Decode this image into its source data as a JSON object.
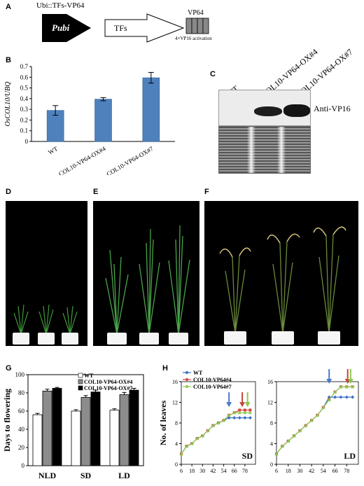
{
  "panels": {
    "A": {
      "letter": "A",
      "construct_title": "Ubi::TFs-VP64",
      "promoter": "Pubi",
      "tf": "TFs",
      "vp64": "VP64",
      "activation": "4×VP16 activation"
    },
    "B": {
      "letter": "B",
      "chart_data": {
        "type": "bar",
        "categories": [
          "WT",
          "COL10-VP64-OX#4",
          "COL10-VP64-OX#7"
        ],
        "values": [
          0.29,
          0.395,
          0.595
        ],
        "errors": [
          0.045,
          0.015,
          0.05
        ],
        "ylabel": "OsCOL10/UBQ",
        "ylim": [
          0,
          0.7
        ],
        "yticks": [
          "0",
          "0.1",
          "0.2",
          "0.3",
          "0.4",
          "0.5",
          "0.6",
          "0.7"
        ],
        "bar_color": "#4f81bd"
      }
    },
    "C": {
      "letter": "C",
      "lanes": [
        "WT",
        "COL10-VP64-OX#4",
        "COL10-VP64-OX#7"
      ],
      "antibody": "Anti-VP16"
    },
    "D": {
      "letter": "D"
    },
    "E": {
      "letter": "E"
    },
    "F": {
      "letter": "F"
    },
    "G": {
      "letter": "G",
      "chart_data": {
        "type": "bar",
        "categories": [
          "NLD",
          "SD",
          "LD"
        ],
        "series": [
          {
            "name": "WT",
            "values": [
              56,
              60,
              61
            ],
            "errors": [
              1.5,
              1.5,
              1.5
            ],
            "color": "#ffffff"
          },
          {
            "name": "COL10-VP64-OX#4",
            "values": [
              82,
              75,
              78
            ],
            "errors": [
              2,
              2,
              2.5
            ],
            "color": "#8c8c8c"
          },
          {
            "name": "COL10-VP64-OX#7",
            "values": [
              85,
              81,
              83
            ],
            "errors": [
              1,
              2,
              2
            ],
            "color": "#000000"
          }
        ],
        "ylabel": "Days to flowering",
        "ylim": [
          0,
          100
        ],
        "yticks": [
          "0",
          "20",
          "40",
          "60",
          "80",
          "100"
        ]
      }
    },
    "H": {
      "letter": "H",
      "chart_data": {
        "type": "line",
        "x": [
          6,
          12,
          18,
          24,
          30,
          36,
          42,
          48,
          54,
          60,
          66,
          72,
          78,
          84
        ],
        "xticks": [
          "6",
          "18",
          "30",
          "42",
          "54",
          "66",
          "78"
        ],
        "ylabel": "No. of leaves",
        "ylim": [
          0,
          16
        ],
        "yticks": [
          "0",
          "4",
          "8",
          "12",
          "16"
        ],
        "legend": [
          "WT",
          "COL10-VP64#4",
          "COL10-VP64#7"
        ],
        "series_colors": [
          "#3a6fc4",
          "#d9413b",
          "#8ccc4c"
        ],
        "arrow_colors": [
          "#4a78c8",
          "#c8423c",
          "#8cc84c"
        ],
        "panels": [
          {
            "condition": "SD",
            "series": [
              {
                "name": "WT",
                "values": [
                  2,
                  3.5,
                  4,
                  5,
                  5.5,
                  6.5,
                  7.5,
                  8,
                  8.5,
                  9,
                  9,
                  9,
                  9,
                  9
                ]
              },
              {
                "name": "COL10-VP64#4",
                "values": [
                  2,
                  3.5,
                  4,
                  5,
                  5.5,
                  6.5,
                  7.5,
                  8,
                  8.5,
                  9.5,
                  10,
                  10.5,
                  10.5,
                  10.5
                ]
              },
              {
                "name": "COL10-VP64#7",
                "values": [
                  2,
                  3.5,
                  4,
                  5,
                  5.5,
                  6.5,
                  7.5,
                  8,
                  8.5,
                  9.5,
                  10,
                  10,
                  10,
                  10
                ]
              }
            ],
            "arrows_at": [
              60,
              75,
              81
            ]
          },
          {
            "condition": "LD",
            "series": [
              {
                "name": "WT",
                "values": [
                  2,
                  3.5,
                  4.5,
                  5.5,
                  6.5,
                  7.5,
                  8.5,
                  9.5,
                  11,
                  13,
                  13,
                  13,
                  13,
                  13
                ]
              },
              {
                "name": "COL10-VP64#4",
                "values": [
                  2,
                  3.5,
                  4.5,
                  5.5,
                  6.5,
                  7.5,
                  8.5,
                  9.5,
                  11,
                  12.5,
                  14,
                  15,
                  15,
                  15
                ]
              },
              {
                "name": "COL10-VP64#7",
                "values": [
                  2,
                  3.5,
                  4.5,
                  5.5,
                  6.5,
                  7.5,
                  8.5,
                  9.5,
                  11,
                  12.5,
                  14,
                  15,
                  15,
                  15
                ]
              }
            ],
            "arrows_at": [
              60,
              79,
              82
            ]
          }
        ]
      }
    }
  }
}
